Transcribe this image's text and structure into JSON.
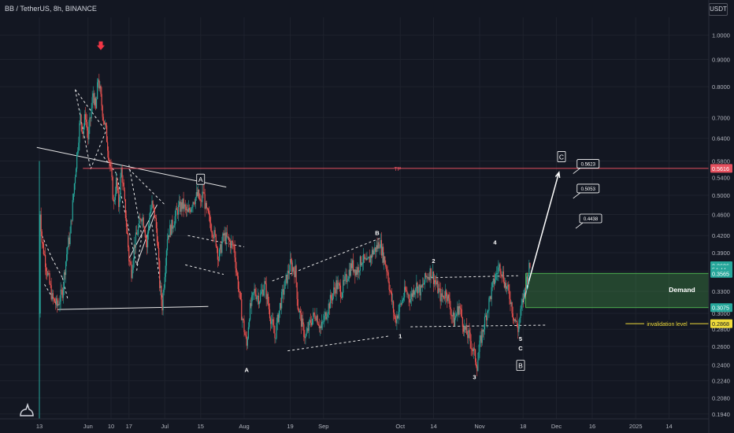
{
  "header": {
    "title": "BB / TetherUS, 8h, BINANCE",
    "currency_button": "USDT"
  },
  "chart_data": {
    "type": "candlestick",
    "symbol": "BB / TetherUS",
    "interval": "8h",
    "exchange": "BINANCE",
    "quote_currency": "USDT",
    "y_scale": "log",
    "ylim": [
      0.19,
      1.08
    ],
    "y_ticks": [
      "1.0000",
      "0.9000",
      "0.8000",
      "0.7000",
      "0.6400",
      "0.5800",
      "0.5400",
      "0.5000",
      "0.4600",
      "0.4200",
      "0.3900",
      "0.3600",
      "0.3300",
      "0.3000",
      "0.2800",
      "0.2600",
      "0.2400",
      "0.2240",
      "0.2080",
      "0.1940"
    ],
    "x_ticks": [
      {
        "label": "13",
        "day": 0
      },
      {
        "label": "Jun",
        "day": 19
      },
      {
        "label": "10",
        "day": 28
      },
      {
        "label": "17",
        "day": 35
      },
      {
        "label": "Jul",
        "day": 49
      },
      {
        "label": "15",
        "day": 63
      },
      {
        "label": "Aug",
        "day": 80
      },
      {
        "label": "19",
        "day": 98
      },
      {
        "label": "Sep",
        "day": 111
      },
      {
        "label": "Oct",
        "day": 141
      },
      {
        "label": "14",
        "day": 154
      },
      {
        "label": "Nov",
        "day": 172
      },
      {
        "label": "18",
        "day": 189
      },
      {
        "label": "Dec",
        "day": 202
      },
      {
        "label": "16",
        "day": 216
      },
      {
        "label": "2025",
        "day": 233
      },
      {
        "label": "14",
        "day": 246
      }
    ],
    "price_path": [
      [
        0,
        0.3
      ],
      [
        0.3,
        0.47
      ],
      [
        1,
        0.41
      ],
      [
        3,
        0.36
      ],
      [
        5,
        0.32
      ],
      [
        7,
        0.31
      ],
      [
        9,
        0.33
      ],
      [
        11,
        0.4
      ],
      [
        12,
        0.42
      ],
      [
        13,
        0.48
      ],
      [
        14,
        0.55
      ],
      [
        15,
        0.62
      ],
      [
        16,
        0.7
      ],
      [
        17,
        0.66
      ],
      [
        18,
        0.71
      ],
      [
        19,
        0.64
      ],
      [
        20,
        0.7
      ],
      [
        21,
        0.78
      ],
      [
        22,
        0.72
      ],
      [
        23,
        0.83
      ],
      [
        24,
        0.76
      ],
      [
        25,
        0.7
      ],
      [
        26,
        0.66
      ],
      [
        27,
        0.6
      ],
      [
        28,
        0.55
      ],
      [
        29,
        0.48
      ],
      [
        30,
        0.53
      ],
      [
        31,
        0.48
      ],
      [
        32,
        0.56
      ],
      [
        33,
        0.5
      ],
      [
        34,
        0.44
      ],
      [
        35,
        0.38
      ],
      [
        36,
        0.36
      ],
      [
        37,
        0.4
      ],
      [
        38,
        0.42
      ],
      [
        39,
        0.44
      ],
      [
        40,
        0.46
      ],
      [
        41,
        0.44
      ],
      [
        42,
        0.4
      ],
      [
        43,
        0.46
      ],
      [
        44,
        0.48
      ],
      [
        45,
        0.46
      ],
      [
        46,
        0.42
      ],
      [
        47,
        0.34
      ],
      [
        48,
        0.31
      ],
      [
        49,
        0.36
      ],
      [
        50,
        0.42
      ],
      [
        52,
        0.44
      ],
      [
        54,
        0.47
      ],
      [
        56,
        0.48
      ],
      [
        58,
        0.46
      ],
      [
        60,
        0.49
      ],
      [
        62,
        0.5
      ],
      [
        63,
        0.48
      ],
      [
        64,
        0.51
      ],
      [
        65,
        0.47
      ],
      [
        67,
        0.44
      ],
      [
        69,
        0.41
      ],
      [
        70,
        0.38
      ],
      [
        72,
        0.42
      ],
      [
        74,
        0.41
      ],
      [
        76,
        0.4
      ],
      [
        77,
        0.36
      ],
      [
        78,
        0.33
      ],
      [
        79,
        0.3
      ],
      [
        80,
        0.28
      ],
      [
        81,
        0.26
      ],
      [
        82,
        0.3
      ],
      [
        84,
        0.33
      ],
      [
        86,
        0.32
      ],
      [
        88,
        0.34
      ],
      [
        90,
        0.3
      ],
      [
        92,
        0.27
      ],
      [
        94,
        0.31
      ],
      [
        96,
        0.34
      ],
      [
        98,
        0.37
      ],
      [
        100,
        0.36
      ],
      [
        101,
        0.31
      ],
      [
        103,
        0.28
      ],
      [
        104,
        0.27
      ],
      [
        106,
        0.29
      ],
      [
        108,
        0.3
      ],
      [
        110,
        0.28
      ],
      [
        112,
        0.3
      ],
      [
        114,
        0.32
      ],
      [
        116,
        0.34
      ],
      [
        118,
        0.33
      ],
      [
        120,
        0.35
      ],
      [
        122,
        0.37
      ],
      [
        124,
        0.36
      ],
      [
        126,
        0.38
      ],
      [
        128,
        0.37
      ],
      [
        130,
        0.39
      ],
      [
        132,
        0.4
      ],
      [
        133,
        0.41
      ],
      [
        134,
        0.39
      ],
      [
        136,
        0.36
      ],
      [
        137,
        0.33
      ],
      [
        138,
        0.31
      ],
      [
        139,
        0.29
      ],
      [
        141,
        0.31
      ],
      [
        143,
        0.33
      ],
      [
        145,
        0.32
      ],
      [
        147,
        0.34
      ],
      [
        149,
        0.33
      ],
      [
        151,
        0.35
      ],
      [
        153,
        0.36
      ],
      [
        155,
        0.34
      ],
      [
        157,
        0.32
      ],
      [
        159,
        0.33
      ],
      [
        161,
        0.3
      ],
      [
        162,
        0.29
      ],
      [
        164,
        0.31
      ],
      [
        166,
        0.28
      ],
      [
        168,
        0.27
      ],
      [
        170,
        0.25
      ],
      [
        171,
        0.24
      ],
      [
        172,
        0.26
      ],
      [
        174,
        0.29
      ],
      [
        176,
        0.32
      ],
      [
        178,
        0.35
      ],
      [
        180,
        0.37
      ],
      [
        182,
        0.34
      ],
      [
        184,
        0.32
      ],
      [
        185,
        0.3
      ],
      [
        186,
        0.29
      ],
      [
        187,
        0.28
      ],
      [
        188,
        0.3
      ],
      [
        189,
        0.32
      ],
      [
        190,
        0.34
      ],
      [
        191,
        0.36
      ],
      [
        192,
        0.37
      ]
    ],
    "annotations": {
      "horizontal_lines": [
        {
          "name": "TP",
          "price": 0.5616,
          "color": "#e5515f"
        },
        {
          "name": "invalidation level",
          "price": 0.2868,
          "color": "#f0dc3a"
        }
      ],
      "zone": {
        "name": "Demand",
        "top": 0.3565,
        "bottom": 0.3075,
        "from_day": 190
      },
      "price_labels": [
        {
          "text": "0.3686",
          "price": 0.3686,
          "bg": "#26a69a"
        },
        {
          "text": "54:44",
          "price": 0.3625,
          "bg": "#26a69a"
        },
        {
          "text": "0.3565",
          "price": 0.3565,
          "bg": "#26a69a"
        },
        {
          "text": "0.5616",
          "price": 0.5616,
          "bg": "#e5515f"
        },
        {
          "text": "0.3075",
          "price": 0.3075,
          "bg": "#26a69a"
        },
        {
          "text": "0.2868",
          "price": 0.2868,
          "bg": "#f0dc3a"
        }
      ],
      "target_callouts": [
        {
          "text": "0.5623",
          "price": 0.5623,
          "day": 207
        },
        {
          "text": "0.5053",
          "price": 0.5053,
          "day": 207
        },
        {
          "text": "0.4438",
          "price": 0.4438,
          "day": 208
        }
      ],
      "wave_labels": [
        {
          "text": "A",
          "day": 63,
          "price": 0.535,
          "boxed": true
        },
        {
          "text": "A",
          "day": 81,
          "price": 0.235,
          "boxed": false
        },
        {
          "text": "B",
          "day": 132,
          "price": 0.425,
          "boxed": false
        },
        {
          "text": "1",
          "day": 141,
          "price": 0.272,
          "boxed": false
        },
        {
          "text": "2",
          "day": 154,
          "price": 0.377,
          "boxed": false
        },
        {
          "text": "3",
          "day": 170,
          "price": 0.228,
          "boxed": false
        },
        {
          "text": "4",
          "day": 178,
          "price": 0.408,
          "boxed": false
        },
        {
          "text": "5",
          "day": 188,
          "price": 0.269,
          "boxed": false
        },
        {
          "text": "C",
          "day": 188,
          "price": 0.258,
          "boxed": false
        },
        {
          "text": "B",
          "day": 188,
          "price": 0.239,
          "boxed": true
        },
        {
          "text": "C",
          "day": 204,
          "price": 0.59,
          "boxed": true
        }
      ],
      "demand_label": "Demand",
      "invalidation_label": "invalidation level",
      "tp_label": "TP"
    }
  }
}
